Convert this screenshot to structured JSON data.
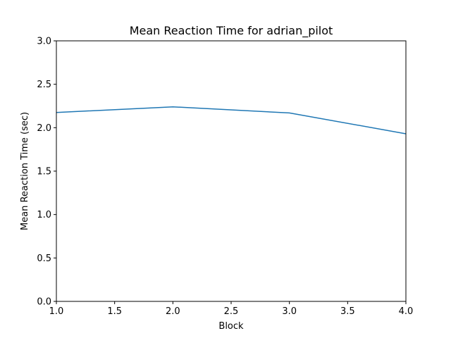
{
  "chart_data": {
    "type": "line",
    "title": "Mean Reaction Time for adrian_pilot",
    "xlabel": "Block",
    "ylabel": "Mean Reaction Time (sec)",
    "xlim": [
      1.0,
      4.0
    ],
    "ylim": [
      0.0,
      3.0
    ],
    "x_ticks": [
      "1.0",
      "1.5",
      "2.0",
      "2.5",
      "3.0",
      "3.5",
      "4.0"
    ],
    "y_ticks": [
      "0.0",
      "0.5",
      "1.0",
      "1.5",
      "2.0",
      "2.5",
      "3.0"
    ],
    "grid": false,
    "series": [
      {
        "color": "#1f77b4",
        "x": [
          1,
          2,
          3,
          4
        ],
        "y": [
          2.175,
          2.24,
          2.17,
          1.93
        ]
      }
    ]
  }
}
